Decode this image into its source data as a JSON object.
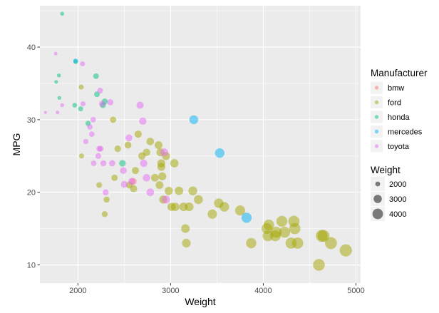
{
  "chart_data": {
    "type": "scatter",
    "title": "",
    "xlabel": "Weight",
    "ylabel": "MPG",
    "xlim": [
      1590,
      5050
    ],
    "ylim": [
      7.5,
      45.7
    ],
    "xticks": [
      2000,
      3000,
      4000,
      5000
    ],
    "yticks": [
      10,
      20,
      30,
      40
    ],
    "grid": true,
    "panel_background": "#ebebeb",
    "grid_color": "#ffffff",
    "point_opacity": 0.5,
    "legend_position": "right",
    "color_legend": {
      "title": "Manufacturer",
      "entries": [
        {
          "label": "bmw",
          "color": "#F8766D"
        },
        {
          "label": "ford",
          "color": "#A3A500"
        },
        {
          "label": "honda",
          "color": "#00BF7D"
        },
        {
          "label": "mercedes",
          "color": "#00B0F6"
        },
        {
          "label": "toyota",
          "color": "#E76BF3"
        }
      ]
    },
    "size_legend": {
      "title": "Weight",
      "values": [
        2000,
        3000,
        4000
      ]
    },
    "series": [
      {
        "name": "bmw",
        "points": [
          [
            2595,
            21.5
          ]
        ]
      },
      {
        "name": "ford",
        "points": [
          [
            2035,
            34.5
          ],
          [
            2040,
            25.0
          ],
          [
            2230,
            21.0
          ],
          [
            2310,
            19.0
          ],
          [
            2290,
            17.0
          ],
          [
            2395,
            22.0
          ],
          [
            2380,
            30.0
          ],
          [
            2430,
            26.0
          ],
          [
            2540,
            26.5
          ],
          [
            2555,
            21.0
          ],
          [
            2600,
            20.5
          ],
          [
            2620,
            23.0
          ],
          [
            2650,
            28.0
          ],
          [
            2690,
            25.0
          ],
          [
            2740,
            25.5
          ],
          [
            2780,
            27.0
          ],
          [
            2830,
            22.0
          ],
          [
            2870,
            26.5
          ],
          [
            2880,
            21.0
          ],
          [
            2900,
            24.0
          ],
          [
            2890,
            25.5
          ],
          [
            2900,
            23.5
          ],
          [
            2910,
            22.2
          ],
          [
            2920,
            19.0
          ],
          [
            2950,
            25.0
          ],
          [
            2980,
            20.2
          ],
          [
            3010,
            18.0
          ],
          [
            3040,
            24.0
          ],
          [
            3050,
            18.0
          ],
          [
            3090,
            20.2
          ],
          [
            3140,
            18.0
          ],
          [
            3160,
            15.0
          ],
          [
            3170,
            13.0
          ],
          [
            3200,
            18.0
          ],
          [
            3240,
            20.2
          ],
          [
            3300,
            19.0
          ],
          [
            3450,
            17.0
          ],
          [
            3520,
            18.5
          ],
          [
            3580,
            18.0
          ],
          [
            3750,
            17.5
          ],
          [
            3870,
            13.0
          ],
          [
            4040,
            15.0
          ],
          [
            4050,
            14.0
          ],
          [
            4060,
            15.5
          ],
          [
            4130,
            14.0
          ],
          [
            4140,
            14.5
          ],
          [
            4200,
            16.0
          ],
          [
            4230,
            14.5
          ],
          [
            4300,
            13.0
          ],
          [
            4330,
            16.0
          ],
          [
            4340,
            15.0
          ],
          [
            4370,
            13.0
          ],
          [
            4600,
            10.0
          ],
          [
            4630,
            14.0
          ],
          [
            4650,
            14.0
          ],
          [
            4730,
            13.0
          ],
          [
            4890,
            12.0
          ]
        ]
      },
      {
        "name": "honda",
        "points": [
          [
            1830,
            44.6
          ],
          [
            1765,
            35.2
          ],
          [
            1795,
            36.1
          ],
          [
            1800,
            33.0
          ],
          [
            1965,
            32.0
          ],
          [
            2030,
            31.5
          ],
          [
            2110,
            29.5
          ],
          [
            2195,
            36.0
          ],
          [
            2205,
            33.5
          ],
          [
            2270,
            32.0
          ],
          [
            2290,
            32.5
          ],
          [
            2480,
            24.0
          ],
          [
            1975,
            38.0
          ]
        ]
      },
      {
        "name": "mercedes",
        "points": [
          [
            1975,
            38.1
          ],
          [
            3250,
            30.0
          ],
          [
            3530,
            25.4
          ],
          [
            3820,
            16.5
          ]
        ]
      },
      {
        "name": "toyota",
        "points": [
          [
            1650,
            31.0
          ],
          [
            1760,
            39.1
          ],
          [
            1780,
            31.0
          ],
          [
            1830,
            32.0
          ],
          [
            2050,
            37.7
          ],
          [
            2055,
            32.2
          ],
          [
            2085,
            27.0
          ],
          [
            2130,
            29.0
          ],
          [
            2150,
            28.0
          ],
          [
            2165,
            30.0
          ],
          [
            2170,
            24.0
          ],
          [
            2220,
            25.0
          ],
          [
            2230,
            26.0
          ],
          [
            2240,
            34.0
          ],
          [
            2245,
            26.0
          ],
          [
            2260,
            32.2
          ],
          [
            2275,
            24.0
          ],
          [
            2300,
            20.0
          ],
          [
            2350,
            32.4
          ],
          [
            2370,
            24.0
          ],
          [
            2490,
            23.0
          ],
          [
            2500,
            21.1
          ],
          [
            2550,
            27.5
          ],
          [
            2580,
            21.5
          ],
          [
            2670,
            32.0
          ],
          [
            2700,
            29.8
          ],
          [
            2710,
            24.0
          ],
          [
            2740,
            22.0
          ],
          [
            2780,
            20.0
          ],
          [
            2930,
            25.5
          ],
          [
            2950,
            19.0
          ]
        ]
      }
    ]
  }
}
